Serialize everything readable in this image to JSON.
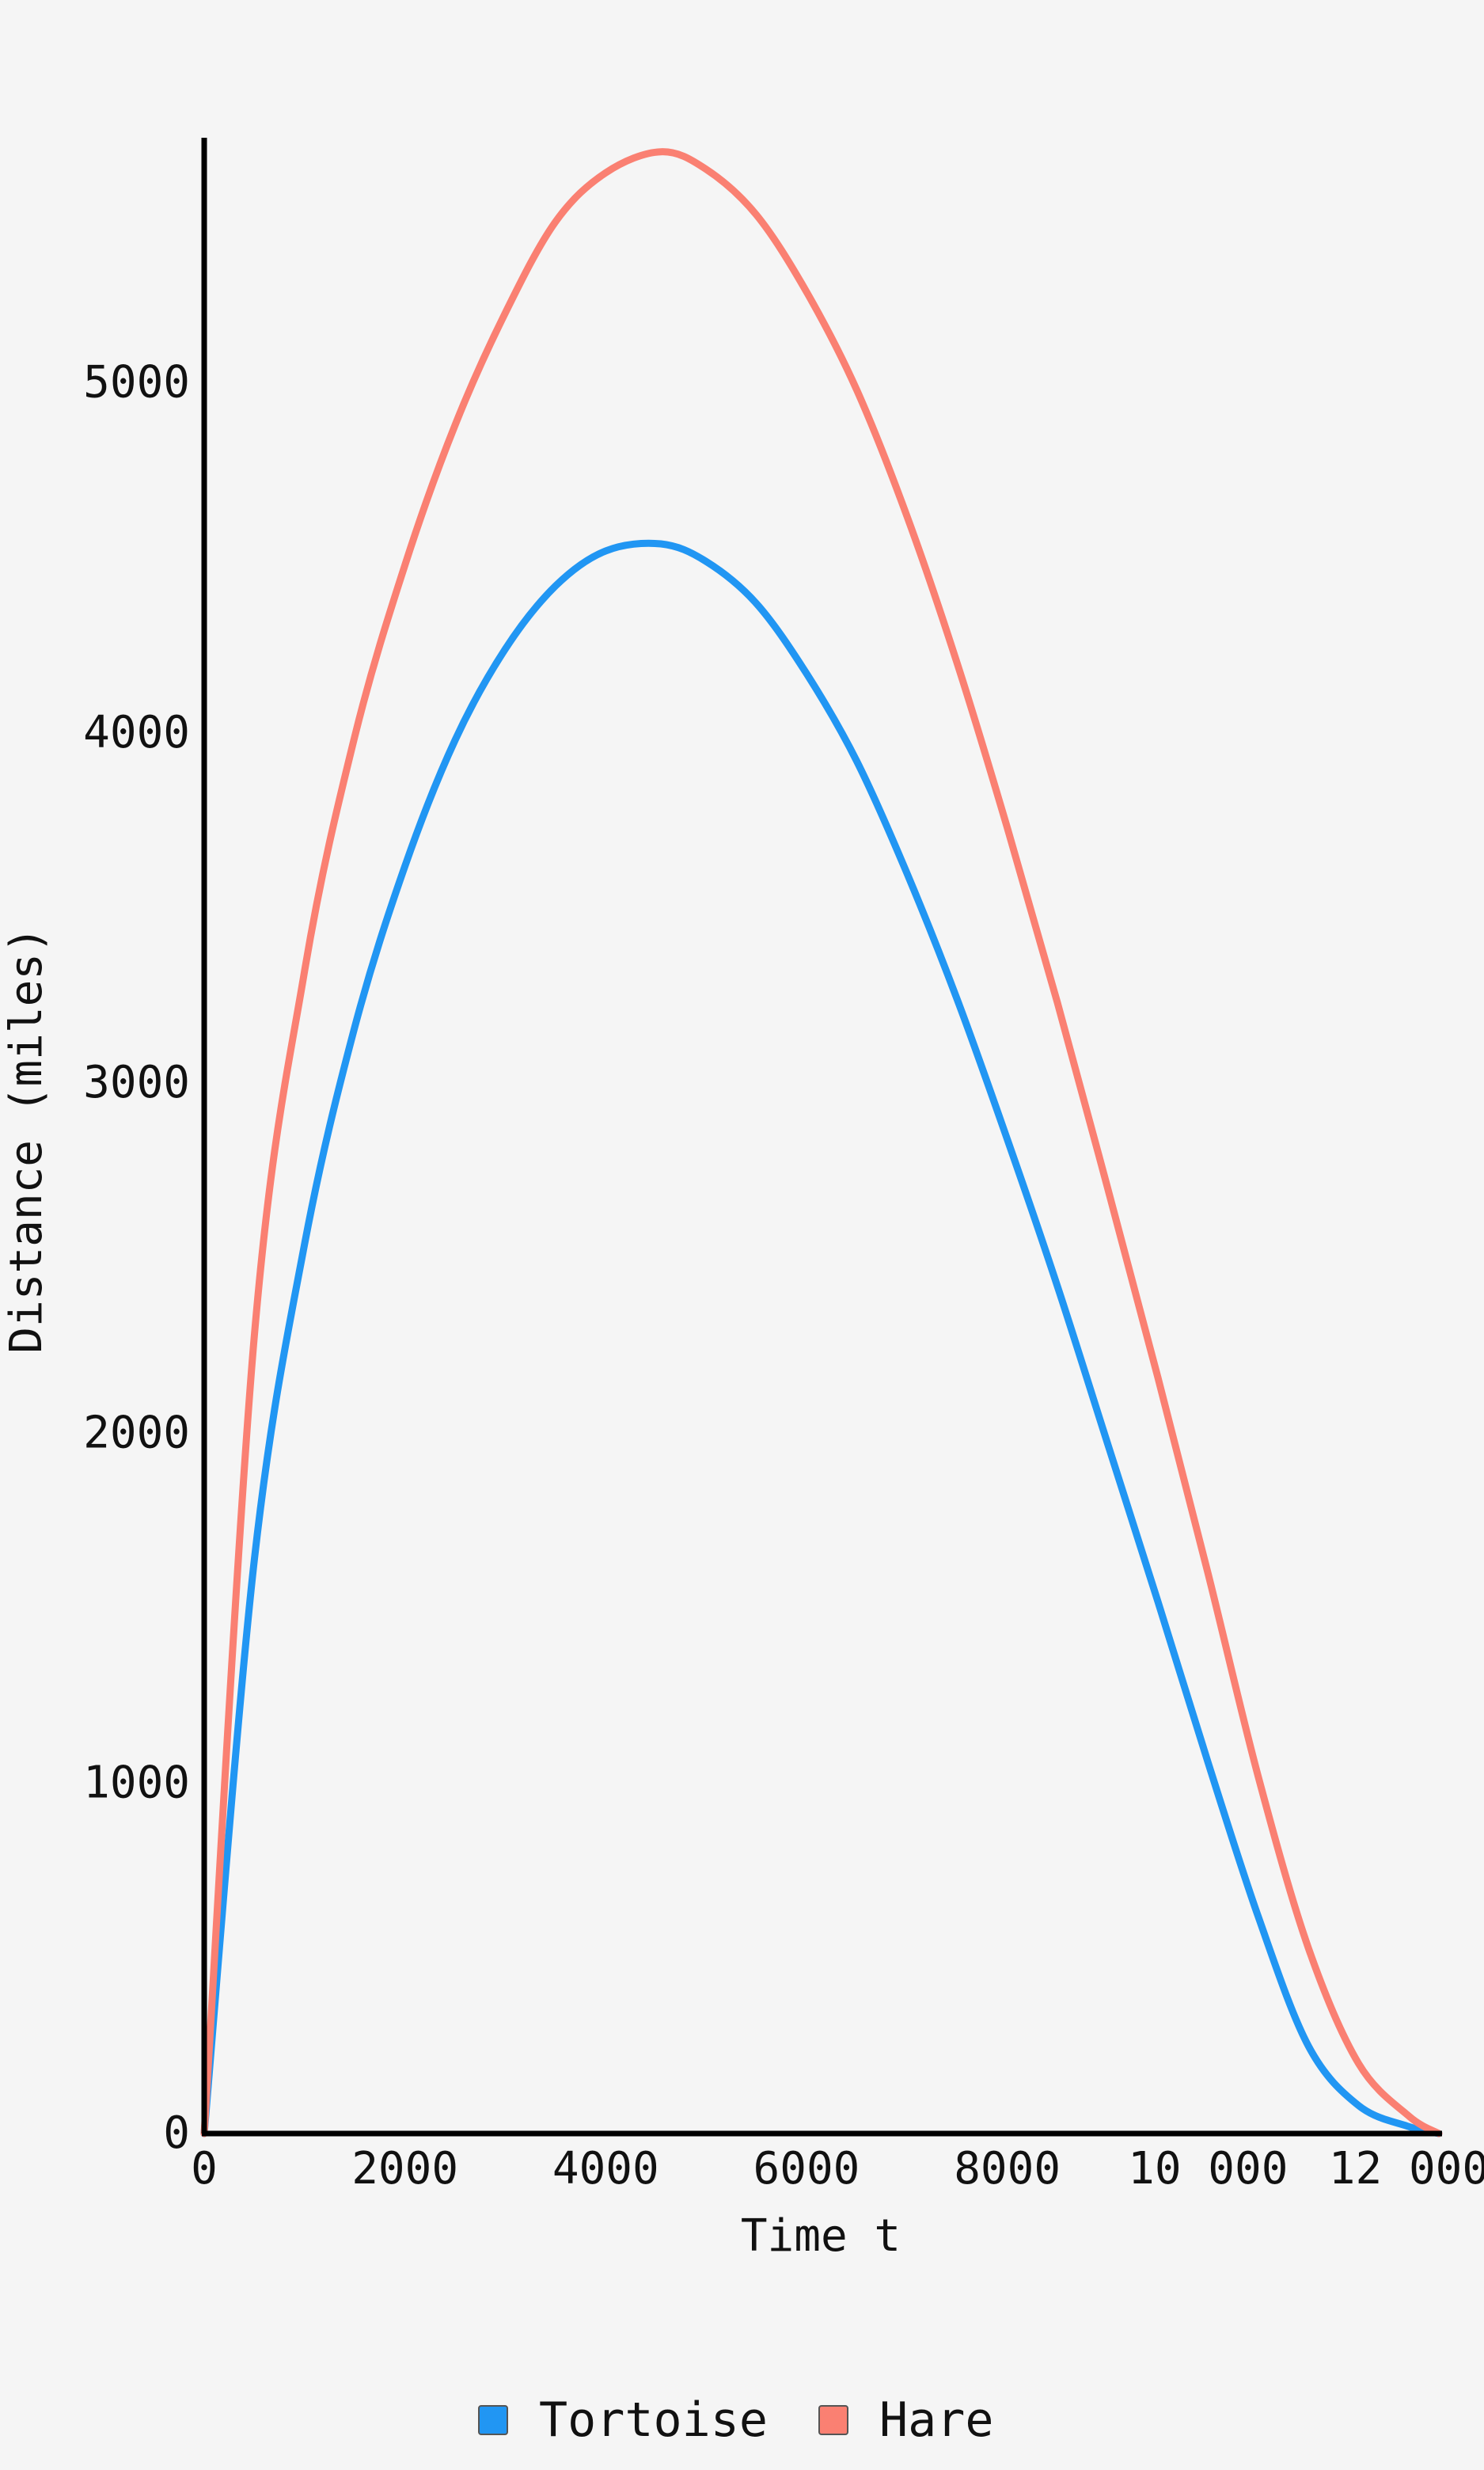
{
  "chart_data": {
    "type": "line",
    "title": "",
    "xlabel": "Time t",
    "ylabel": "Distance (miles)",
    "xlim": [
      0,
      12300
    ],
    "ylim": [
      0,
      5700
    ],
    "x_ticks": [
      0,
      2000,
      4000,
      6000,
      8000,
      10000,
      12000
    ],
    "x_tick_labels": [
      "0",
      "2000",
      "4000",
      "6000",
      "8000",
      "10 000",
      "12 000"
    ],
    "y_ticks": [
      0,
      1000,
      2000,
      3000,
      4000,
      5000
    ],
    "y_tick_labels": [
      "0",
      "1000",
      "2000",
      "3000",
      "4000",
      "5000"
    ],
    "grid": false,
    "legend_position": "bottom-center",
    "series": [
      {
        "name": "Tortoise",
        "color": "#2196f3",
        "x": [
          0,
          500,
          1000,
          1500,
          2000,
          2500,
          3000,
          3500,
          4000,
          4550,
          5000,
          5500,
          6000,
          6500,
          7000,
          7500,
          8000,
          8500,
          9000,
          9500,
          10000,
          10500,
          11000,
          11500,
          12000,
          12300
        ],
        "y": [
          0,
          1640,
          2540,
          3160,
          3620,
          3980,
          4240,
          4420,
          4520,
          4540,
          4490,
          4370,
          4170,
          3920,
          3600,
          3240,
          2840,
          2420,
          1970,
          1520,
          1060,
          620,
          250,
          80,
          20,
          0
        ]
      },
      {
        "name": "Hare",
        "color": "#fa8072",
        "x": [
          0,
          500,
          1000,
          1500,
          2000,
          2500,
          3000,
          3500,
          4000,
          4550,
          5000,
          5500,
          6000,
          6500,
          7000,
          7500,
          8000,
          8500,
          9000,
          9500,
          10000,
          10500,
          11000,
          11500,
          12000,
          12300
        ],
        "y": [
          0,
          2280,
          3320,
          3990,
          4480,
          4880,
          5200,
          5460,
          5600,
          5660,
          5610,
          5480,
          5260,
          4980,
          4620,
          4200,
          3730,
          3230,
          2700,
          2160,
          1600,
          1020,
          530,
          200,
          50,
          0
        ]
      }
    ]
  }
}
